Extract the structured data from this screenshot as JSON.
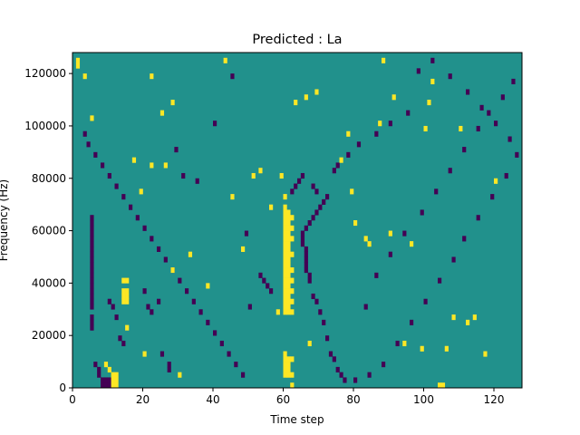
{
  "chart_data": {
    "type": "heatmap",
    "title": "Predicted : La",
    "xlabel": "Time step",
    "ylabel": "Frequency (Hz)",
    "xlim": [
      0,
      128
    ],
    "ylim": [
      0,
      128000
    ],
    "x_ticks": [
      0,
      20,
      40,
      60,
      80,
      100,
      120
    ],
    "y_ticks": [
      0,
      20000,
      40000,
      60000,
      80000,
      100000,
      120000
    ],
    "grid": false,
    "legend": "none",
    "colormap": "viridis",
    "values": [
      -1,
      0,
      1
    ],
    "background_value": 0,
    "colors": {
      "low": "#440154",
      "mid": "#21918c",
      "high": "#fde725"
    },
    "cell_height_hz": 2000,
    "high_cells": [
      [
        1,
        124000
      ],
      [
        1,
        122000
      ],
      [
        3,
        118000
      ],
      [
        9,
        8000
      ],
      [
        10,
        6000
      ],
      [
        11,
        4000
      ],
      [
        11,
        2000
      ],
      [
        11,
        0
      ],
      [
        12,
        4000
      ],
      [
        12,
        2000
      ],
      [
        12,
        0
      ],
      [
        14,
        40000
      ],
      [
        14,
        36000
      ],
      [
        14,
        34000
      ],
      [
        14,
        32000
      ],
      [
        15,
        40000
      ],
      [
        15,
        36000
      ],
      [
        15,
        34000
      ],
      [
        15,
        32000
      ],
      [
        15,
        22000
      ],
      [
        60,
        72000
      ],
      [
        60,
        68000
      ],
      [
        60,
        66000
      ],
      [
        60,
        64000
      ],
      [
        60,
        62000
      ],
      [
        60,
        60000
      ],
      [
        60,
        58000
      ],
      [
        60,
        56000
      ],
      [
        60,
        54000
      ],
      [
        60,
        52000
      ],
      [
        60,
        50000
      ],
      [
        60,
        48000
      ],
      [
        60,
        46000
      ],
      [
        60,
        44000
      ],
      [
        60,
        42000
      ],
      [
        60,
        40000
      ],
      [
        60,
        38000
      ],
      [
        60,
        36000
      ],
      [
        60,
        34000
      ],
      [
        60,
        32000
      ],
      [
        60,
        30000
      ],
      [
        60,
        28000
      ],
      [
        60,
        12000
      ],
      [
        60,
        10000
      ],
      [
        60,
        8000
      ],
      [
        60,
        6000
      ],
      [
        60,
        4000
      ],
      [
        61,
        66000
      ],
      [
        61,
        64000
      ],
      [
        61,
        62000
      ],
      [
        61,
        60000
      ],
      [
        61,
        58000
      ],
      [
        61,
        56000
      ],
      [
        61,
        54000
      ],
      [
        61,
        52000
      ],
      [
        61,
        50000
      ],
      [
        61,
        48000
      ],
      [
        61,
        46000
      ],
      [
        61,
        44000
      ],
      [
        61,
        42000
      ],
      [
        61,
        40000
      ],
      [
        61,
        38000
      ],
      [
        61,
        36000
      ],
      [
        61,
        34000
      ],
      [
        61,
        32000
      ],
      [
        61,
        30000
      ],
      [
        61,
        28000
      ],
      [
        61,
        10000
      ],
      [
        61,
        8000
      ],
      [
        61,
        6000
      ],
      [
        61,
        4000
      ],
      [
        62,
        64000
      ],
      [
        62,
        60000
      ],
      [
        62,
        56000
      ],
      [
        62,
        50000
      ],
      [
        62,
        44000
      ],
      [
        62,
        40000
      ],
      [
        62,
        36000
      ],
      [
        62,
        32000
      ],
      [
        62,
        28000
      ],
      [
        62,
        10000
      ],
      [
        62,
        4000
      ],
      [
        62,
        0
      ],
      [
        22,
        118000
      ],
      [
        28,
        108000
      ],
      [
        25,
        104000
      ],
      [
        5,
        102000
      ],
      [
        19,
        74000
      ],
      [
        20,
        12000
      ],
      [
        30,
        4000
      ],
      [
        48,
        52000
      ],
      [
        17,
        86000
      ],
      [
        22,
        84000
      ],
      [
        26,
        84000
      ],
      [
        28,
        44000
      ],
      [
        33,
        50000
      ],
      [
        38,
        38000
      ],
      [
        43,
        124000
      ],
      [
        45,
        72000
      ],
      [
        51,
        80000
      ],
      [
        53,
        82000
      ],
      [
        56,
        68000
      ],
      [
        58,
        28000
      ],
      [
        59,
        80000
      ],
      [
        63,
        108000
      ],
      [
        66,
        110000
      ],
      [
        67,
        16000
      ],
      [
        69,
        112000
      ],
      [
        76,
        86000
      ],
      [
        78,
        96000
      ],
      [
        79,
        74000
      ],
      [
        80,
        62000
      ],
      [
        83,
        56000
      ],
      [
        84,
        54000
      ],
      [
        87,
        100000
      ],
      [
        88,
        124000
      ],
      [
        90,
        58000
      ],
      [
        91,
        110000
      ],
      [
        94,
        16000
      ],
      [
        96,
        54000
      ],
      [
        99,
        14000
      ],
      [
        100,
        98000
      ],
      [
        101,
        108000
      ],
      [
        102,
        116000
      ],
      [
        104,
        0
      ],
      [
        105,
        0
      ],
      [
        106,
        14000
      ],
      [
        108,
        26000
      ],
      [
        110,
        98000
      ],
      [
        112,
        24000
      ],
      [
        114,
        26000
      ],
      [
        117,
        12000
      ],
      [
        120,
        78000
      ]
    ],
    "low_cells": [
      [
        8,
        2000
      ],
      [
        8,
        0
      ],
      [
        9,
        2000
      ],
      [
        9,
        0
      ],
      [
        10,
        2000
      ],
      [
        10,
        0
      ],
      [
        7,
        4000
      ],
      [
        7,
        6000
      ],
      [
        6,
        8000
      ],
      [
        5,
        22000
      ],
      [
        5,
        24000
      ],
      [
        5,
        26000
      ],
      [
        5,
        30000
      ],
      [
        5,
        32000
      ],
      [
        5,
        34000
      ],
      [
        5,
        36000
      ],
      [
        5,
        38000
      ],
      [
        5,
        40000
      ],
      [
        5,
        42000
      ],
      [
        5,
        44000
      ],
      [
        5,
        46000
      ],
      [
        5,
        48000
      ],
      [
        5,
        50000
      ],
      [
        5,
        52000
      ],
      [
        5,
        54000
      ],
      [
        5,
        56000
      ],
      [
        5,
        58000
      ],
      [
        5,
        60000
      ],
      [
        5,
        62000
      ],
      [
        5,
        64000
      ],
      [
        10,
        32000
      ],
      [
        11,
        30000
      ],
      [
        12,
        26000
      ],
      [
        13,
        18000
      ],
      [
        14,
        16000
      ],
      [
        20,
        36000
      ],
      [
        21,
        30000
      ],
      [
        22,
        28000
      ],
      [
        24,
        32000
      ],
      [
        25,
        12000
      ],
      [
        27,
        6000
      ],
      [
        27,
        8000
      ],
      [
        29,
        90000
      ],
      [
        31,
        80000
      ],
      [
        35,
        78000
      ],
      [
        40,
        100000
      ],
      [
        45,
        118000
      ],
      [
        49,
        58000
      ],
      [
        50,
        30000
      ],
      [
        53,
        42000
      ],
      [
        54,
        40000
      ],
      [
        55,
        38000
      ],
      [
        56,
        36000
      ],
      [
        65,
        58000
      ],
      [
        65,
        56000
      ],
      [
        65,
        54000
      ],
      [
        66,
        52000
      ],
      [
        66,
        50000
      ],
      [
        66,
        48000
      ],
      [
        66,
        46000
      ],
      [
        66,
        44000
      ],
      [
        67,
        42000
      ],
      [
        67,
        40000
      ],
      [
        68,
        34000
      ],
      [
        69,
        32000
      ],
      [
        70,
        28000
      ],
      [
        71,
        24000
      ],
      [
        72,
        18000
      ],
      [
        73,
        12000
      ],
      [
        74,
        10000
      ],
      [
        75,
        6000
      ],
      [
        76,
        4000
      ],
      [
        77,
        2000
      ],
      [
        66,
        60000
      ],
      [
        67,
        62000
      ],
      [
        68,
        64000
      ],
      [
        69,
        66000
      ],
      [
        70,
        68000
      ],
      [
        69,
        74000
      ],
      [
        68,
        76000
      ],
      [
        71,
        70000
      ],
      [
        72,
        72000
      ],
      [
        64,
        78000
      ],
      [
        63,
        76000
      ],
      [
        62,
        74000
      ],
      [
        65,
        80000
      ],
      [
        74,
        82000
      ],
      [
        75,
        84000
      ],
      [
        78,
        88000
      ],
      [
        81,
        92000
      ],
      [
        86,
        96000
      ],
      [
        90,
        100000
      ],
      [
        95,
        104000
      ],
      [
        98,
        120000
      ],
      [
        102,
        124000
      ],
      [
        107,
        118000
      ],
      [
        112,
        112000
      ],
      [
        116,
        106000
      ],
      [
        120,
        100000
      ],
      [
        124,
        94000
      ],
      [
        126,
        88000
      ],
      [
        123,
        80000
      ],
      [
        119,
        72000
      ],
      [
        115,
        64000
      ],
      [
        111,
        56000
      ],
      [
        108,
        48000
      ],
      [
        104,
        40000
      ],
      [
        100,
        32000
      ],
      [
        96,
        24000
      ],
      [
        92,
        16000
      ],
      [
        88,
        8000
      ],
      [
        84,
        4000
      ],
      [
        80,
        2000
      ],
      [
        83,
        30000
      ],
      [
        86,
        42000
      ],
      [
        90,
        50000
      ],
      [
        94,
        58000
      ],
      [
        99,
        66000
      ],
      [
        103,
        74000
      ],
      [
        107,
        82000
      ],
      [
        111,
        90000
      ],
      [
        115,
        98000
      ],
      [
        118,
        104000
      ],
      [
        122,
        110000
      ],
      [
        125,
        116000
      ],
      [
        3,
        96000
      ],
      [
        4,
        92000
      ],
      [
        6,
        88000
      ],
      [
        8,
        84000
      ],
      [
        10,
        80000
      ],
      [
        12,
        76000
      ],
      [
        14,
        72000
      ],
      [
        16,
        68000
      ],
      [
        18,
        64000
      ],
      [
        20,
        60000
      ],
      [
        22,
        56000
      ],
      [
        24,
        52000
      ],
      [
        26,
        48000
      ],
      [
        28,
        44000
      ],
      [
        30,
        40000
      ],
      [
        32,
        36000
      ],
      [
        34,
        32000
      ],
      [
        36,
        28000
      ],
      [
        38,
        24000
      ],
      [
        40,
        20000
      ],
      [
        42,
        16000
      ],
      [
        44,
        12000
      ],
      [
        46,
        8000
      ],
      [
        48,
        4000
      ]
    ]
  }
}
